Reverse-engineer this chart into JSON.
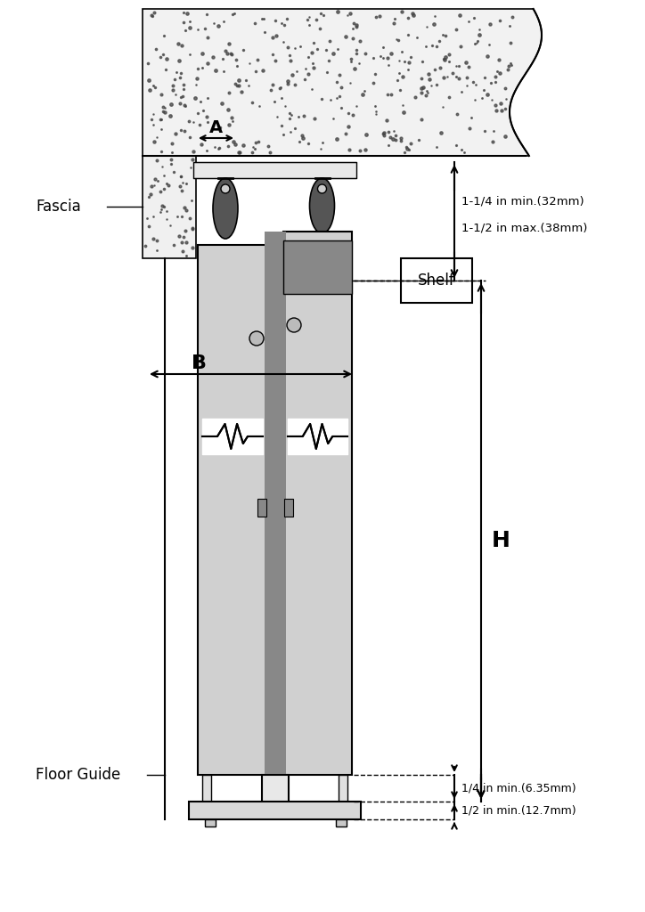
{
  "fig_width": 7.24,
  "fig_height": 10.24,
  "bg_color": "#ffffff",
  "line_color": "#000000",
  "gray_light": "#cccccc",
  "gray_medium": "#aaaaaa",
  "gray_dark": "#666666",
  "gray_roller": "#555555",
  "dot_color": "#444444",
  "label_fascia": "Fascia",
  "label_floor_guide": "Floor Guide",
  "label_shelf": "Shelf",
  "label_A": "A",
  "label_B": "B",
  "label_H": "H",
  "dim_top1": "1-1/4 in min.(32mm)",
  "dim_top2": "1-1/2 in max.(38mm)",
  "dim_bot1": "1/4 in min.(6.35mm)",
  "dim_bot2": "1/2 in min.(12.7mm)"
}
